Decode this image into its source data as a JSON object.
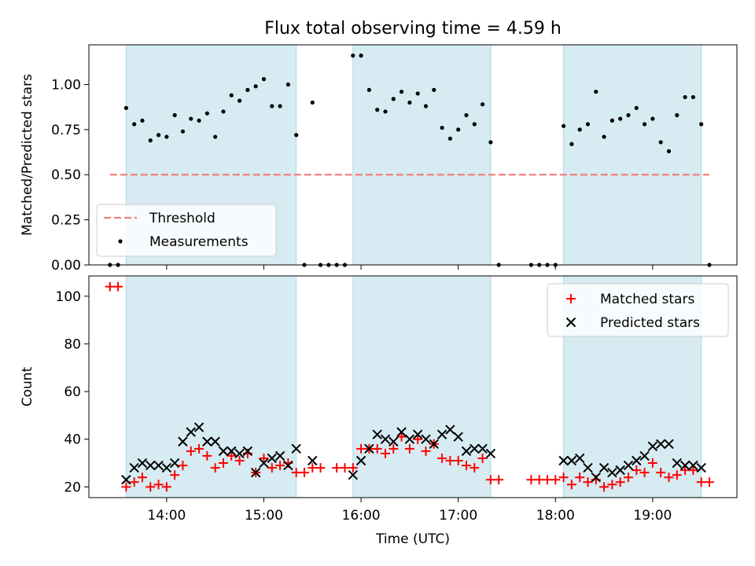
{
  "title": "Flux total observing time = 4.59 h",
  "colors": {
    "band": "#add8e6",
    "threshold": "#f08080",
    "measurements": "#000000",
    "matched": "#ff0000",
    "predicted": "#000000"
  },
  "chart_data": [
    {
      "type": "scatter",
      "ylabel": "Matched/Predicted stars",
      "xlabel": "",
      "xlim": [
        "13:12",
        "19:52"
      ],
      "ylim": [
        0,
        1.22
      ],
      "y_ticks": [
        "0.00",
        "0.25",
        "0.50",
        "0.75",
        "1.00"
      ],
      "x_ticks": [
        "14:00",
        "15:00",
        "16:00",
        "17:00",
        "18:00",
        "19:00"
      ],
      "shaded_intervals": [
        [
          "13:35",
          "15:20"
        ],
        [
          "15:55",
          "17:20"
        ],
        [
          "18:05",
          "19:30"
        ]
      ],
      "legend_position": "lower-left",
      "threshold": {
        "name": "Threshold",
        "value": 0.5,
        "x_range": [
          "13:25",
          "19:35"
        ]
      },
      "series": [
        {
          "name": "Measurements",
          "points": [
            [
              "13:25",
              0.0
            ],
            [
              "13:30",
              0.0
            ],
            [
              "13:35",
              0.87
            ],
            [
              "13:40",
              0.78
            ],
            [
              "13:45",
              0.8
            ],
            [
              "13:50",
              0.69
            ],
            [
              "13:55",
              0.72
            ],
            [
              "14:00",
              0.71
            ],
            [
              "14:05",
              0.83
            ],
            [
              "14:10",
              0.74
            ],
            [
              "14:15",
              0.81
            ],
            [
              "14:20",
              0.8
            ],
            [
              "14:25",
              0.84
            ],
            [
              "14:30",
              0.71
            ],
            [
              "14:35",
              0.85
            ],
            [
              "14:40",
              0.94
            ],
            [
              "14:45",
              0.91
            ],
            [
              "14:50",
              0.97
            ],
            [
              "14:55",
              0.99
            ],
            [
              "15:00",
              1.03
            ],
            [
              "15:05",
              0.88
            ],
            [
              "15:10",
              0.88
            ],
            [
              "15:15",
              1.0
            ],
            [
              "15:20",
              0.72
            ],
            [
              "15:25",
              0.0
            ],
            [
              "15:30",
              0.9
            ],
            [
              "15:35",
              0.0
            ],
            [
              "15:40",
              0.0
            ],
            [
              "15:45",
              0.0
            ],
            [
              "15:50",
              0.0
            ],
            [
              "15:55",
              1.16
            ],
            [
              "16:00",
              1.16
            ],
            [
              "16:05",
              0.97
            ],
            [
              "16:10",
              0.86
            ],
            [
              "16:15",
              0.85
            ],
            [
              "16:20",
              0.92
            ],
            [
              "16:25",
              0.96
            ],
            [
              "16:30",
              0.9
            ],
            [
              "16:35",
              0.95
            ],
            [
              "16:40",
              0.88
            ],
            [
              "16:45",
              0.97
            ],
            [
              "16:50",
              0.76
            ],
            [
              "16:55",
              0.7
            ],
            [
              "17:00",
              0.75
            ],
            [
              "17:05",
              0.83
            ],
            [
              "17:10",
              0.78
            ],
            [
              "17:15",
              0.89
            ],
            [
              "17:20",
              0.68
            ],
            [
              "17:25",
              0.0
            ],
            [
              "17:45",
              0.0
            ],
            [
              "17:50",
              0.0
            ],
            [
              "17:55",
              0.0
            ],
            [
              "18:00",
              0.0
            ],
            [
              "18:05",
              0.77
            ],
            [
              "18:10",
              0.67
            ],
            [
              "18:15",
              0.75
            ],
            [
              "18:20",
              0.78
            ],
            [
              "18:25",
              0.96
            ],
            [
              "18:30",
              0.71
            ],
            [
              "18:35",
              0.8
            ],
            [
              "18:40",
              0.81
            ],
            [
              "18:45",
              0.83
            ],
            [
              "18:50",
              0.87
            ],
            [
              "18:55",
              0.78
            ],
            [
              "19:00",
              0.81
            ],
            [
              "19:05",
              0.68
            ],
            [
              "19:10",
              0.63
            ],
            [
              "19:15",
              0.83
            ],
            [
              "19:20",
              0.93
            ],
            [
              "19:25",
              0.93
            ],
            [
              "19:30",
              0.78
            ],
            [
              "19:35",
              0.0
            ]
          ]
        }
      ]
    },
    {
      "type": "scatter",
      "ylabel": "Count",
      "xlabel": "Time (UTC)",
      "xlim": [
        "13:12",
        "19:52"
      ],
      "ylim": [
        15.5,
        108.5
      ],
      "y_ticks": [
        "20",
        "40",
        "60",
        "80",
        "100"
      ],
      "x_ticks": [
        "14:00",
        "15:00",
        "16:00",
        "17:00",
        "18:00",
        "19:00"
      ],
      "shaded_intervals": [
        [
          "13:35",
          "15:20"
        ],
        [
          "15:55",
          "17:20"
        ],
        [
          "18:05",
          "19:30"
        ]
      ],
      "legend_position": "upper-right",
      "series": [
        {
          "name": "Matched stars",
          "marker": "plus",
          "points": [
            [
              "13:25",
              104
            ],
            [
              "13:30",
              104
            ],
            [
              "13:35",
              20
            ],
            [
              "13:40",
              22
            ],
            [
              "13:45",
              24
            ],
            [
              "13:50",
              20
            ],
            [
              "13:55",
              21
            ],
            [
              "14:00",
              20
            ],
            [
              "14:05",
              25
            ],
            [
              "14:10",
              29
            ],
            [
              "14:15",
              35
            ],
            [
              "14:20",
              36
            ],
            [
              "14:25",
              33
            ],
            [
              "14:30",
              28
            ],
            [
              "14:35",
              30
            ],
            [
              "14:40",
              33
            ],
            [
              "14:45",
              31
            ],
            [
              "14:50",
              34
            ],
            [
              "14:55",
              26
            ],
            [
              "15:00",
              32
            ],
            [
              "15:05",
              28
            ],
            [
              "15:10",
              29
            ],
            [
              "15:15",
              30
            ],
            [
              "15:20",
              26
            ],
            [
              "15:25",
              26
            ],
            [
              "15:30",
              28
            ],
            [
              "15:35",
              28
            ],
            [
              "15:45",
              28
            ],
            [
              "15:50",
              28
            ],
            [
              "15:55",
              28
            ],
            [
              "16:00",
              36
            ],
            [
              "16:05",
              36
            ],
            [
              "16:10",
              36
            ],
            [
              "16:15",
              34
            ],
            [
              "16:20",
              36
            ],
            [
              "16:25",
              41
            ],
            [
              "16:30",
              36
            ],
            [
              "16:35",
              40
            ],
            [
              "16:40",
              35
            ],
            [
              "16:45",
              38
            ],
            [
              "16:50",
              32
            ],
            [
              "16:55",
              31
            ],
            [
              "17:00",
              31
            ],
            [
              "17:05",
              29
            ],
            [
              "17:10",
              28
            ],
            [
              "17:15",
              32
            ],
            [
              "17:20",
              23
            ],
            [
              "17:25",
              23
            ],
            [
              "17:45",
              23
            ],
            [
              "17:50",
              23
            ],
            [
              "17:55",
              23
            ],
            [
              "18:00",
              23
            ],
            [
              "18:05",
              24
            ],
            [
              "18:10",
              21
            ],
            [
              "18:15",
              24
            ],
            [
              "18:20",
              22
            ],
            [
              "18:25",
              23
            ],
            [
              "18:30",
              20
            ],
            [
              "18:35",
              21
            ],
            [
              "18:40",
              22
            ],
            [
              "18:45",
              24
            ],
            [
              "18:50",
              27
            ],
            [
              "18:55",
              26
            ],
            [
              "19:00",
              30
            ],
            [
              "19:05",
              26
            ],
            [
              "19:10",
              24
            ],
            [
              "19:15",
              25
            ],
            [
              "19:20",
              27
            ],
            [
              "19:25",
              27
            ],
            [
              "19:30",
              22
            ],
            [
              "19:35",
              22
            ]
          ]
        },
        {
          "name": "Predicted stars",
          "marker": "x",
          "points": [
            [
              "13:35",
              23
            ],
            [
              "13:40",
              28
            ],
            [
              "13:45",
              30
            ],
            [
              "13:50",
              29
            ],
            [
              "13:55",
              29
            ],
            [
              "14:00",
              28
            ],
            [
              "14:05",
              30
            ],
            [
              "14:10",
              39
            ],
            [
              "14:15",
              43
            ],
            [
              "14:20",
              45
            ],
            [
              "14:25",
              39
            ],
            [
              "14:30",
              39
            ],
            [
              "14:35",
              35
            ],
            [
              "14:40",
              35
            ],
            [
              "14:45",
              34
            ],
            [
              "14:50",
              35
            ],
            [
              "14:55",
              26
            ],
            [
              "15:00",
              30
            ],
            [
              "15:05",
              32
            ],
            [
              "15:10",
              33
            ],
            [
              "15:15",
              29
            ],
            [
              "15:20",
              36
            ],
            [
              "15:30",
              31
            ],
            [
              "15:55",
              25
            ],
            [
              "16:00",
              31
            ],
            [
              "16:05",
              36
            ],
            [
              "16:10",
              42
            ],
            [
              "16:15",
              40
            ],
            [
              "16:20",
              39
            ],
            [
              "16:25",
              43
            ],
            [
              "16:30",
              40
            ],
            [
              "16:35",
              42
            ],
            [
              "16:40",
              40
            ],
            [
              "16:45",
              38
            ],
            [
              "16:50",
              42
            ],
            [
              "16:55",
              44
            ],
            [
              "17:00",
              41
            ],
            [
              "17:05",
              35
            ],
            [
              "17:10",
              36
            ],
            [
              "17:15",
              36
            ],
            [
              "17:20",
              34
            ],
            [
              "18:05",
              31
            ],
            [
              "18:10",
              31
            ],
            [
              "18:15",
              32
            ],
            [
              "18:20",
              28
            ],
            [
              "18:25",
              24
            ],
            [
              "18:30",
              28
            ],
            [
              "18:35",
              26
            ],
            [
              "18:40",
              27
            ],
            [
              "18:45",
              29
            ],
            [
              "18:50",
              31
            ],
            [
              "18:55",
              33
            ],
            [
              "19:00",
              37
            ],
            [
              "19:05",
              38
            ],
            [
              "19:10",
              38
            ],
            [
              "19:15",
              30
            ],
            [
              "19:20",
              29
            ],
            [
              "19:25",
              29
            ],
            [
              "19:30",
              28
            ]
          ]
        }
      ]
    }
  ]
}
